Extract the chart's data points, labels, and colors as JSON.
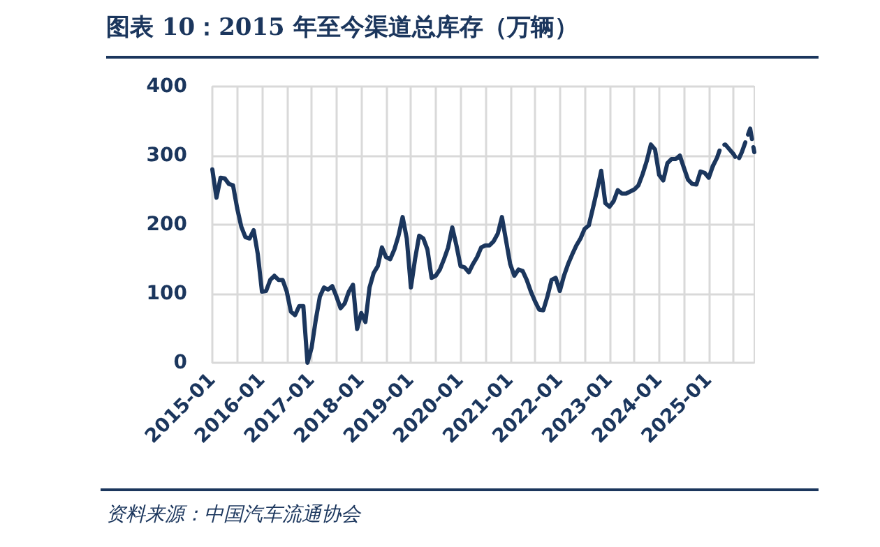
{
  "chart_data": {
    "type": "line",
    "title": "图表 10：2015 年至今渠道总库存（万辆）",
    "annotations": [
      "资料来源：中国汽车流通协会"
    ],
    "categories": [
      "2015-01",
      null,
      null,
      null,
      null,
      null,
      null,
      null,
      null,
      null,
      null,
      null,
      "2016-01",
      null,
      null,
      null,
      null,
      null,
      null,
      null,
      null,
      null,
      null,
      null,
      "2017-01",
      null,
      null,
      null,
      null,
      null,
      null,
      null,
      null,
      null,
      null,
      null,
      "2018-01",
      null,
      null,
      null,
      null,
      null,
      null,
      null,
      null,
      null,
      null,
      null,
      "2019-01",
      null,
      null,
      null,
      null,
      null,
      null,
      null,
      null,
      null,
      null,
      null,
      "2020-01",
      null,
      null,
      null,
      null,
      null,
      null,
      null,
      null,
      null,
      null,
      null,
      "2021-01",
      null,
      null,
      null,
      null,
      null,
      null,
      null,
      null,
      null,
      null,
      null,
      "2022-01",
      null,
      null,
      null,
      null,
      null,
      null,
      null,
      null,
      null,
      null,
      null,
      "2023-01",
      null,
      null,
      null,
      null,
      null,
      null,
      null,
      null,
      null,
      null,
      null,
      "2024-01",
      null,
      null,
      null,
      null,
      null,
      null,
      null,
      null,
      null,
      null,
      null,
      "2025-01",
      null,
      null,
      null,
      null,
      null,
      null,
      null,
      null,
      null,
      null,
      null
    ],
    "series": [
      {
        "color": "#1b365d",
        "line_style": "solid",
        "values": [
          280,
          239,
          268,
          267,
          259,
          257,
          224,
          197,
          182,
          180,
          192,
          157,
          103,
          104,
          120,
          126,
          120,
          120,
          103,
          74,
          69,
          82,
          82,
          0,
          22,
          62,
          96,
          109,
          106,
          111,
          96,
          79,
          86,
          103,
          113,
          49,
          72,
          59,
          109,
          130,
          140,
          167,
          153,
          150,
          164,
          184,
          211,
          180,
          109,
          150,
          184,
          180,
          164,
          123,
          126,
          135,
          150,
          167,
          196,
          170,
          140,
          138,
          131,
          143,
          153,
          167,
          170,
          170,
          176,
          187,
          211,
          177,
          143,
          126,
          135,
          133,
          120,
          103,
          89,
          77,
          76,
          96,
          120,
          123,
          104,
          126,
          143,
          157,
          170,
          180,
          194,
          199,
          224,
          250,
          278,
          231,
          226,
          234,
          250,
          245,
          245,
          248,
          251,
          257,
          273,
          292,
          316,
          309,
          272,
          264,
          289,
          295,
          295,
          300,
          282,
          265,
          259,
          258,
          277,
          275,
          268,
          285,
          null,
          null,
          null,
          null,
          null,
          null,
          null,
          null,
          null,
          null
        ]
      },
      {
        "color": "#1b365d",
        "line_style": "dashed",
        "values": [
          null,
          null,
          null,
          null,
          null,
          null,
          null,
          null,
          null,
          null,
          null,
          null,
          null,
          null,
          null,
          null,
          null,
          null,
          null,
          null,
          null,
          null,
          null,
          null,
          null,
          null,
          null,
          null,
          null,
          null,
          null,
          null,
          null,
          null,
          null,
          null,
          null,
          null,
          null,
          null,
          null,
          null,
          null,
          null,
          null,
          null,
          null,
          null,
          null,
          null,
          null,
          null,
          null,
          null,
          null,
          null,
          null,
          null,
          null,
          null,
          null,
          null,
          null,
          null,
          null,
          null,
          null,
          null,
          null,
          null,
          null,
          null,
          null,
          null,
          null,
          null,
          null,
          null,
          null,
          null,
          null,
          null,
          null,
          null,
          null,
          null,
          null,
          null,
          null,
          null,
          null,
          null,
          null,
          null,
          null,
          null,
          null,
          null,
          null,
          null,
          null,
          null,
          null,
          null,
          null,
          null,
          null,
          null,
          null,
          null,
          null,
          null,
          null,
          null,
          null,
          null,
          null,
          null,
          null,
          null,
          null,
          285,
          297,
          314,
          316,
          309,
          302,
          292,
          305,
          322,
          339,
          305
        ]
      }
    ],
    "ylim": [
      0,
      400
    ],
    "yticks": [
      0,
      100,
      200,
      300,
      400
    ],
    "grid": true,
    "marker": "none"
  }
}
